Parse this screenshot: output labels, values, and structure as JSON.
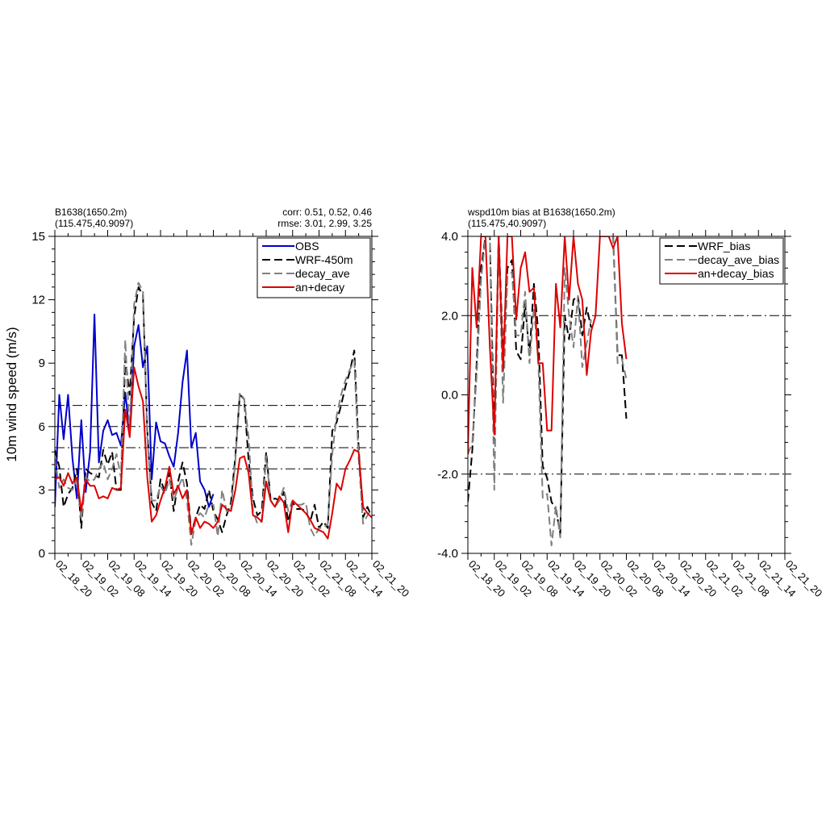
{
  "chart_data": [
    {
      "type": "line",
      "title_left": [
        "B1638(1650.2m)",
        "(115.475,40.9097)"
      ],
      "title_right": [
        "corr:  0.51, 0.52, 0.46",
        "rmse: 3.01, 2.99, 3.25"
      ],
      "ylabel": "10m wind speed (m/s)",
      "xlabel": "",
      "ylim": [
        0,
        15
      ],
      "yticks": [
        0,
        3,
        6,
        9,
        12,
        15
      ],
      "ytick_labels": [
        "0",
        "3",
        "6",
        "9",
        "12",
        "15"
      ],
      "xlim": [
        0,
        72
      ],
      "xticks": [
        0,
        6,
        12,
        18,
        24,
        30,
        36,
        42,
        48,
        54,
        60,
        66,
        72
      ],
      "xtick_labels": [
        "02_18_20",
        "02_19_02",
        "02_19_08",
        "02_19_14",
        "02_19_20",
        "02_20_02",
        "02_20_08",
        "02_20_14",
        "02_20_20",
        "02_21_02",
        "02_21_08",
        "02_21_14",
        "02_21_20"
      ],
      "reference_lines": [
        4,
        5,
        6,
        7
      ],
      "legend": "top-right",
      "series": [
        {
          "name": "OBS",
          "color": "#0000cc",
          "dash": "solid",
          "x": [
            0,
            1,
            2,
            3,
            4,
            5,
            6,
            7,
            8,
            9,
            10,
            11,
            12,
            13,
            14,
            15,
            16,
            17,
            18,
            19,
            20,
            21,
            22,
            23,
            24,
            25,
            26,
            27,
            28,
            29,
            30,
            31,
            32,
            33,
            34,
            35,
            36,
            37,
            38,
            39,
            40
          ],
          "y": [
            2.2,
            7.5,
            5.4,
            7.5,
            4.5,
            2.6,
            6.3,
            2.9,
            4.8,
            11.3,
            4.3,
            5.8,
            6.3,
            5.6,
            5.7,
            5.1,
            7.6,
            5.7,
            9.8,
            10.8,
            8.8,
            9.8,
            3.5,
            6.2,
            5.3,
            5.2,
            4.6,
            4.1,
            5.7,
            8.1,
            9.6,
            5.0,
            5.7,
            3.4,
            3.0,
            2.2,
            2.8,
            null,
            null,
            null,
            null
          ]
        },
        {
          "name": "WRF-450m",
          "color": "#000000",
          "dash": "long",
          "x": [
            0,
            1,
            2,
            3,
            4,
            5,
            6,
            7,
            8,
            9,
            10,
            11,
            12,
            13,
            14,
            15,
            16,
            17,
            18,
            19,
            20,
            21,
            22,
            23,
            24,
            25,
            26,
            27,
            28,
            29,
            30,
            31,
            32,
            33,
            34,
            35,
            36,
            37,
            38,
            39,
            40,
            41,
            42,
            43,
            44,
            45,
            46,
            47,
            48,
            49,
            50,
            51,
            52,
            53,
            54,
            55,
            56,
            57,
            58,
            59,
            60,
            61,
            62,
            63,
            64,
            65,
            66,
            67,
            68,
            69,
            70,
            71,
            72
          ],
          "y": [
            4.9,
            4.1,
            2.2,
            2.8,
            3.1,
            4.0,
            1.2,
            4.0,
            3.8,
            3.7,
            3.6,
            4.9,
            4.2,
            4.8,
            3.0,
            3.0,
            9.2,
            7.5,
            11.2,
            12.6,
            12.2,
            5.8,
            2.4,
            2.0,
            3.5,
            2.9,
            3.8,
            2.0,
            3.4,
            4.3,
            3.3,
            1.0,
            1.7,
            2.3,
            2.1,
            3.0,
            2.0,
            1.6,
            1.0,
            1.8,
            2.4,
            4.6,
            7.5,
            7.3,
            4.4,
            2.6,
            1.8,
            2.0,
            4.8,
            2.5,
            2.6,
            2.5,
            2.9,
            1.5,
            2.4,
            2.1,
            2.1,
            2.0,
            1.5,
            2.3,
            1.2,
            1.5,
            1.2,
            5.8,
            6.2,
            7.0,
            7.9,
            8.6,
            9.6,
            5.0,
            1.7,
            2.2,
            1.7
          ]
        },
        {
          "name": "decay_ave",
          "color": "#808080",
          "dash": "long",
          "x": [
            0,
            1,
            2,
            3,
            4,
            5,
            6,
            7,
            8,
            9,
            10,
            11,
            12,
            13,
            14,
            15,
            16,
            17,
            18,
            19,
            20,
            21,
            22,
            23,
            24,
            25,
            26,
            27,
            28,
            29,
            30,
            31,
            32,
            33,
            34,
            35,
            36,
            37,
            38,
            39,
            40,
            41,
            42,
            43,
            44,
            45,
            46,
            47,
            48,
            49,
            50,
            51,
            52,
            53,
            54,
            55,
            56,
            57,
            58,
            59,
            60,
            61,
            62,
            63,
            64,
            65,
            66,
            67,
            68,
            69,
            70,
            71,
            72
          ],
          "y": [
            4.5,
            3.1,
            3.5,
            3.1,
            3.0,
            3.5,
            1.6,
            3.6,
            3.4,
            3.5,
            4.0,
            4.3,
            3.5,
            4.0,
            4.7,
            3.6,
            10.1,
            5.6,
            11.8,
            12.8,
            12.4,
            5.5,
            2.5,
            2.5,
            3.2,
            2.8,
            3.5,
            2.5,
            3.1,
            3.6,
            2.5,
            0.4,
            1.6,
            1.9,
            1.7,
            2.3,
            2.3,
            0.8,
            3.0,
            2.0,
            2.0,
            4.4,
            7.6,
            7.3,
            5.5,
            2.0,
            1.4,
            1.5,
            4.6,
            2.5,
            2.2,
            2.5,
            3.1,
            2.0,
            2.5,
            2.3,
            2.3,
            2.4,
            1.2,
            0.8,
            1.2,
            1.2,
            1.4,
            4.7,
            6.5,
            7.5,
            8.2,
            8.7,
            9.1,
            4.5,
            1.4,
            1.8,
            2.1
          ]
        },
        {
          "name": "an+decay",
          "color": "#dd0000",
          "dash": "solid",
          "x": [
            0,
            1,
            2,
            3,
            4,
            5,
            6,
            7,
            8,
            9,
            10,
            11,
            12,
            13,
            14,
            15,
            16,
            17,
            18,
            19,
            20,
            21,
            22,
            23,
            24,
            25,
            26,
            27,
            28,
            29,
            30,
            31,
            32,
            33,
            34,
            35,
            36,
            37,
            38,
            39,
            40,
            41,
            42,
            43,
            44,
            45,
            46,
            47,
            48,
            49,
            50,
            51,
            52,
            53,
            54,
            55,
            56,
            57,
            58,
            59,
            60,
            61,
            62,
            63,
            64,
            65,
            66,
            67,
            68,
            69,
            70,
            71,
            72
          ],
          "y": [
            3.5,
            3.6,
            3.2,
            3.8,
            3.3,
            3.6,
            2.0,
            3.5,
            3.2,
            3.2,
            2.6,
            2.7,
            2.6,
            3.1,
            3.0,
            3.1,
            6.8,
            5.5,
            8.8,
            7.9,
            7.2,
            3.6,
            1.5,
            1.8,
            2.5,
            3.1,
            4.1,
            2.8,
            3.2,
            2.6,
            3.0,
            0.9,
            1.7,
            1.2,
            1.5,
            1.4,
            1.2,
            1.5,
            2.3,
            2.1,
            2.0,
            3.0,
            4.5,
            4.6,
            3.8,
            1.8,
            1.7,
            1.5,
            3.4,
            2.5,
            2.2,
            2.7,
            2.4,
            1.0,
            2.5,
            2.3,
            2.1,
            1.9,
            1.6,
            1.2,
            1.1,
            1.0,
            0.7,
            1.9,
            3.3,
            3.0,
            4.0,
            4.4,
            4.9,
            4.8,
            2.2,
            1.9,
            1.7
          ]
        }
      ]
    },
    {
      "type": "line",
      "title_left": [
        "wspd10m bias at B1638(1650.2m)",
        "(115.475,40.9097)"
      ],
      "ylabel": "",
      "xlabel": "",
      "ylim": [
        -4,
        4
      ],
      "yticks": [
        -4,
        -2,
        0,
        2,
        4
      ],
      "ytick_labels": [
        "-4.0",
        "-2.0",
        "0.0",
        "2.0",
        "4.0"
      ],
      "xlim": [
        0,
        72
      ],
      "xticks": [
        0,
        6,
        12,
        18,
        24,
        30,
        36,
        42,
        48,
        54,
        60,
        66,
        72
      ],
      "xtick_labels": [
        "02_18_20",
        "02_19_02",
        "02_19_08",
        "02_19_14",
        "02_19_20",
        "02_20_02",
        "02_20_08",
        "02_20_14",
        "02_20_20",
        "02_21_02",
        "02_21_08",
        "02_21_14",
        "02_21_20"
      ],
      "reference_lines": [
        -2,
        2
      ],
      "legend": "top-right",
      "series": [
        {
          "name": "WRF_bias",
          "color": "#000000",
          "dash": "long",
          "x": [
            0,
            1,
            2,
            3,
            4,
            5,
            6,
            7,
            8,
            9,
            10,
            11,
            12,
            13,
            14,
            15,
            16,
            17,
            18,
            19,
            20,
            21,
            22,
            23,
            24,
            25,
            26,
            27,
            28,
            29,
            30,
            31,
            32,
            33,
            34,
            35,
            36,
            37,
            38,
            39,
            40
          ],
          "y": [
            -2.7,
            -1.4,
            0.8,
            3.2,
            4.0,
            4.0,
            -1.2,
            4.0,
            1.0,
            3.2,
            3.4,
            1.1,
            0.9,
            2.3,
            1.0,
            2.8,
            1.6,
            -1.8,
            -2.1,
            -2.7,
            -2.9,
            -3.5,
            2.0,
            1.4,
            2.4,
            2.5,
            1.5,
            2.2,
            1.7,
            null,
            4.0,
            4.0,
            4.0,
            4.0,
            1.0,
            1.0,
            -0.6,
            null,
            null,
            null,
            null
          ]
        },
        {
          "name": "decay_ave_bias",
          "color": "#808080",
          "dash": "long",
          "x": [
            0,
            1,
            2,
            3,
            4,
            5,
            6,
            7,
            8,
            9,
            10,
            11,
            12,
            13,
            14,
            15,
            16,
            17,
            18,
            19,
            20,
            21,
            22,
            23,
            24,
            25,
            26,
            27,
            28,
            29,
            30,
            31,
            32,
            33,
            34,
            35,
            36,
            37,
            38,
            39,
            40
          ],
          "y": [
            -1.5,
            -1.2,
            0.5,
            2.9,
            4.0,
            4.0,
            -2.4,
            4.0,
            -0.2,
            3.0,
            3.1,
            1.5,
            1.5,
            2.6,
            0.8,
            2.2,
            0.9,
            -2.6,
            -2.5,
            -3.8,
            -2.8,
            -3.6,
            3.2,
            2.0,
            1.2,
            2.5,
            0.7,
            1.3,
            1.9,
            null,
            4.0,
            4.0,
            4.0,
            4.0,
            0.8,
            0.9,
            0.4,
            null,
            null,
            null,
            null
          ]
        },
        {
          "name": "an+decay_bias",
          "color": "#dd0000",
          "dash": "solid",
          "x": [
            0,
            1,
            2,
            3,
            4,
            5,
            6,
            7,
            8,
            9,
            10,
            11,
            12,
            13,
            14,
            15,
            16,
            17,
            18,
            19,
            20,
            21,
            22,
            23,
            24,
            25,
            26,
            27,
            28,
            29,
            30,
            31,
            32,
            33,
            34,
            35,
            36,
            37,
            38,
            39,
            40
          ],
          "y": [
            -1.5,
            3.2,
            1.7,
            4.0,
            4.0,
            1.2,
            -1.0,
            4.0,
            0.6,
            4.0,
            4.0,
            1.9,
            3.2,
            3.6,
            2.6,
            2.7,
            0.8,
            0.8,
            -0.9,
            -0.9,
            2.8,
            1.7,
            4.0,
            2.4,
            4.0,
            2.8,
            2.4,
            0.5,
            1.6,
            2.0,
            4.0,
            4.0,
            4.0,
            3.7,
            4.0,
            1.8,
            0.9,
            null,
            null,
            null,
            null
          ]
        }
      ]
    }
  ]
}
